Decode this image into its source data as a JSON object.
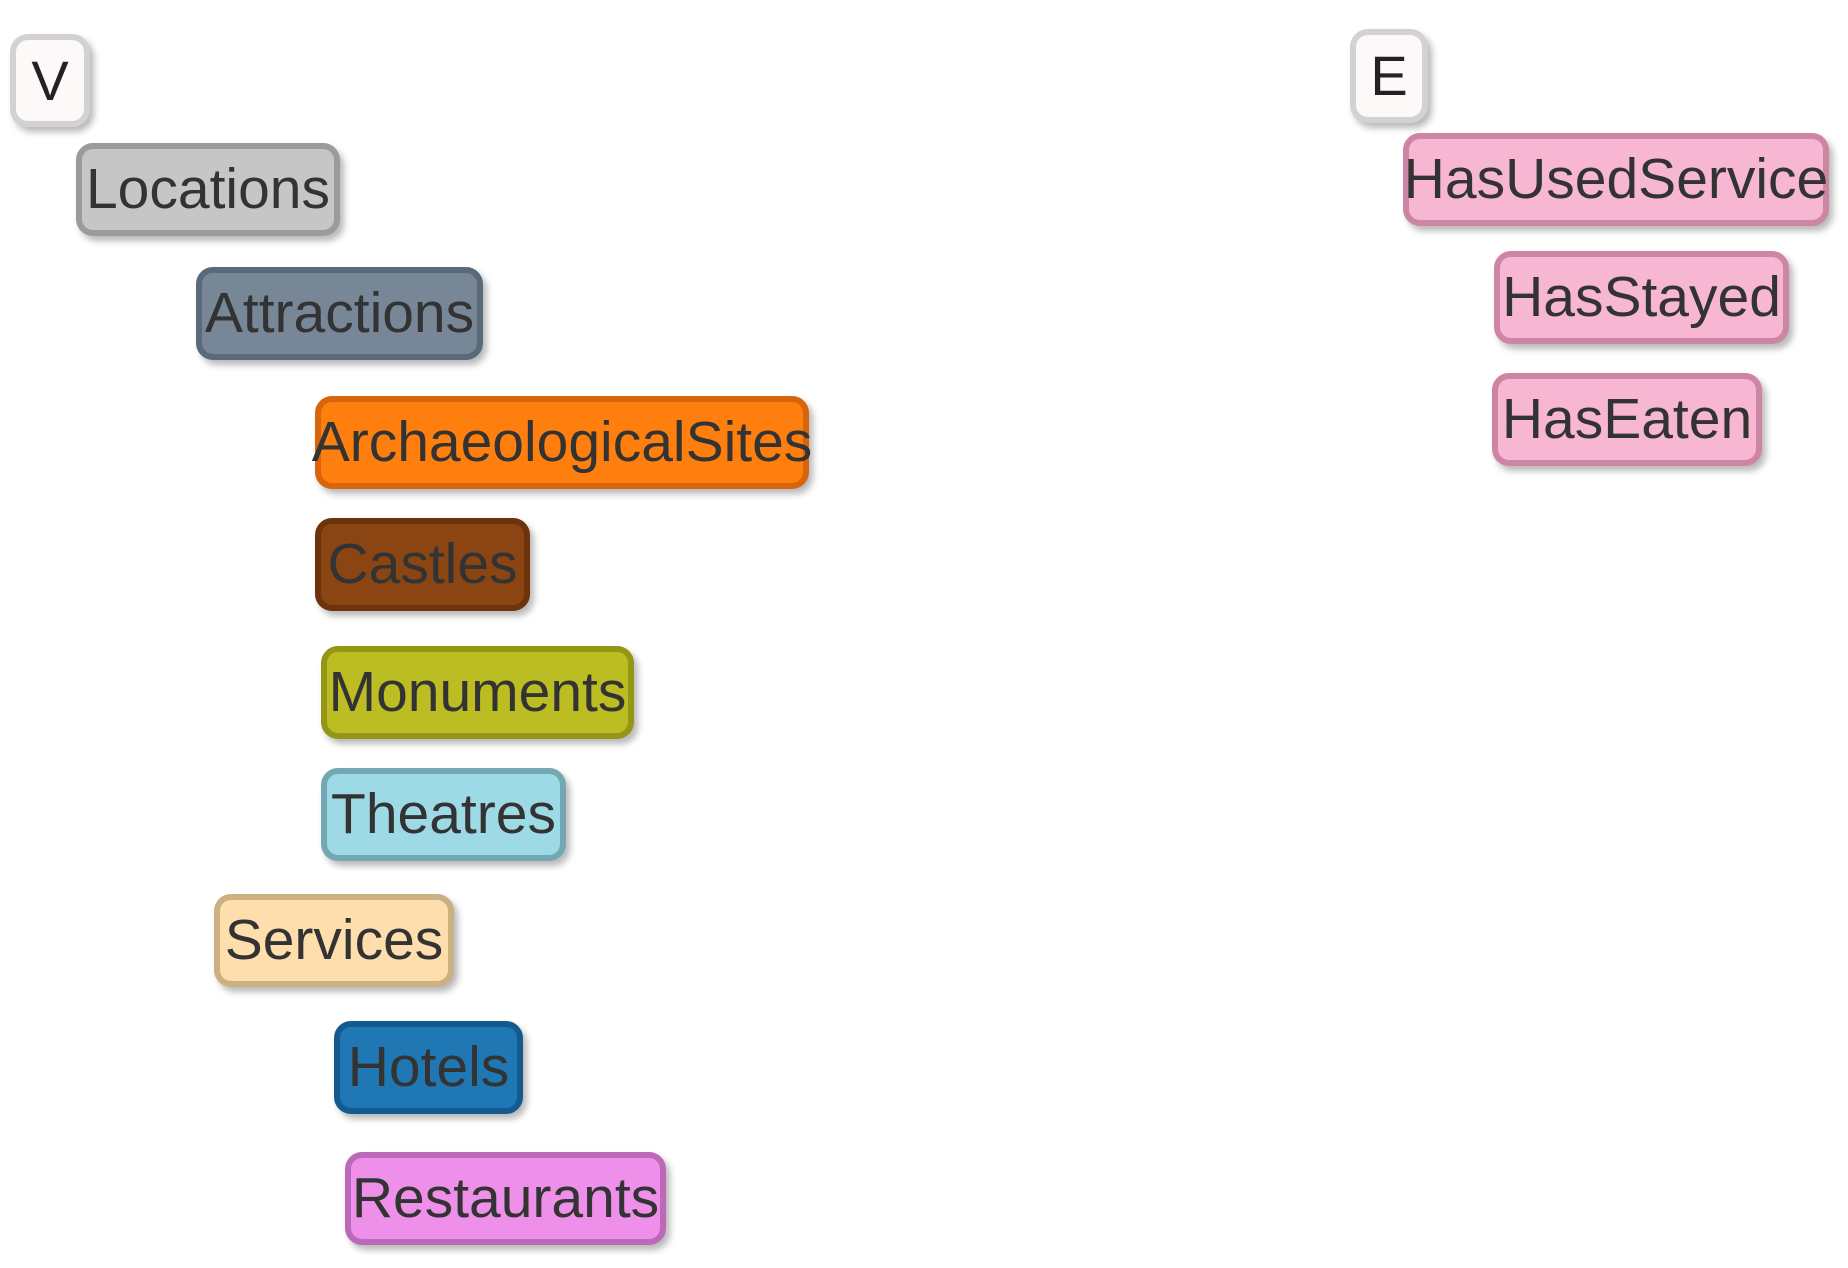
{
  "vertices": {
    "root": {
      "label": "V",
      "fill": "#fcf9f8",
      "border": "#d2d2d2"
    },
    "items": [
      {
        "label": "Locations",
        "fill": "#c6c6c6",
        "border": "#9b9b9b"
      },
      {
        "label": "Attractions",
        "fill": "#778797",
        "border": "#5b6a79"
      },
      {
        "label": "ArchaeologicalSites",
        "fill": "#ff7f0e",
        "border": "#d8650b"
      },
      {
        "label": "Castles",
        "fill": "#8b4513",
        "border": "#6d330c"
      },
      {
        "label": "Monuments",
        "fill": "#bcbd22",
        "border": "#959616"
      },
      {
        "label": "Theatres",
        "fill": "#9edae5",
        "border": "#73a8b2"
      },
      {
        "label": "Services",
        "fill": "#ffdead",
        "border": "#cbb082"
      },
      {
        "label": "Hotels",
        "fill": "#1f77b4",
        "border": "#135b8f"
      },
      {
        "label": "Restaurants",
        "fill": "#ee90e9",
        "border": "#bd69b9"
      }
    ]
  },
  "edges": {
    "root": {
      "label": "E",
      "fill": "#fcf9f8",
      "border": "#d2d2d2"
    },
    "items": [
      {
        "label": "HasUsedService",
        "fill": "#f7b6d2",
        "border": "#cc86a3"
      },
      {
        "label": "HasStayed",
        "fill": "#f7b6d2",
        "border": "#cc86a3"
      },
      {
        "label": "HasEaten",
        "fill": "#f7b6d2",
        "border": "#cc86a3"
      }
    ]
  }
}
